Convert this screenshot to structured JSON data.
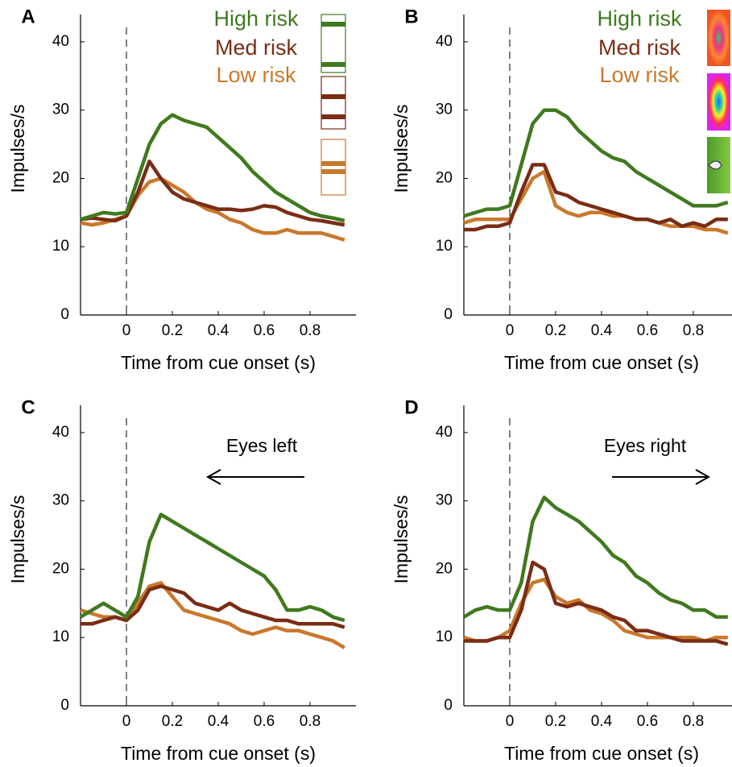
{
  "chart_data": [
    {
      "type": "line",
      "panel_label": "A",
      "x_label": "Time from cue onset (s)",
      "y_label": "Impulses/s",
      "x": [
        -0.2,
        -0.15,
        -0.1,
        -0.05,
        0,
        0.05,
        0.1,
        0.15,
        0.2,
        0.25,
        0.3,
        0.35,
        0.4,
        0.45,
        0.5,
        0.55,
        0.6,
        0.65,
        0.7,
        0.75,
        0.8,
        0.85,
        0.9,
        0.95
      ],
      "xlim": [
        -0.2,
        1
      ],
      "ylim": [
        0,
        44
      ],
      "xticks": [
        0,
        0.2,
        0.4,
        0.6,
        0.8
      ],
      "yticks": [
        0,
        10,
        20,
        30,
        40
      ],
      "reference_line_x": 0,
      "series": [
        {
          "name": "High risk",
          "color": "#3f7a1e",
          "values": [
            14,
            14.5,
            15,
            14.8,
            15,
            20,
            25,
            28,
            29.3,
            28.5,
            28,
            27.5,
            26,
            24.5,
            23,
            21,
            19.5,
            18,
            17,
            16,
            15,
            14.5,
            14.2,
            13.8
          ]
        },
        {
          "name": "Med risk",
          "color": "#7a2d14",
          "values": [
            14,
            14.2,
            14,
            13.8,
            14.5,
            18,
            22.5,
            20,
            18,
            17,
            16.5,
            16,
            15.5,
            15.5,
            15.3,
            15.5,
            16,
            15.8,
            15,
            14.5,
            14,
            13.8,
            13.5,
            13.2
          ]
        },
        {
          "name": "Low risk",
          "color": "#c9782c",
          "values": [
            13.5,
            13.2,
            13.5,
            14,
            14.5,
            17.5,
            19.5,
            20,
            19,
            18,
            16.5,
            15.5,
            15,
            14,
            13.5,
            12.5,
            12,
            12,
            12.5,
            12,
            12,
            12,
            11.5,
            11
          ]
        }
      ]
    },
    {
      "type": "line",
      "panel_label": "B",
      "x_label": "Time from cue onset (s)",
      "y_label": "Impulses/s",
      "x": [
        -0.2,
        -0.15,
        -0.1,
        -0.05,
        0,
        0.05,
        0.1,
        0.15,
        0.2,
        0.25,
        0.3,
        0.35,
        0.4,
        0.45,
        0.5,
        0.55,
        0.6,
        0.65,
        0.7,
        0.75,
        0.8,
        0.85,
        0.9,
        0.95
      ],
      "xlim": [
        -0.2,
        1
      ],
      "ylim": [
        0,
        44
      ],
      "xticks": [
        0,
        0.2,
        0.4,
        0.6,
        0.8
      ],
      "yticks": [
        0,
        10,
        20,
        30,
        40
      ],
      "reference_line_x": 0,
      "series": [
        {
          "name": "High risk",
          "color": "#3f7a1e",
          "values": [
            14.5,
            15,
            15.5,
            15.5,
            16,
            22,
            28,
            30,
            30,
            29,
            27,
            25.5,
            24,
            23,
            22.5,
            21,
            20,
            19,
            18,
            17,
            16,
            16,
            16,
            16.5
          ]
        },
        {
          "name": "Med risk",
          "color": "#7a2d14",
          "values": [
            12.5,
            12.5,
            13,
            13,
            13.5,
            18,
            22,
            22,
            18,
            17.5,
            16.5,
            16,
            15.5,
            15,
            14.5,
            14,
            14,
            13.5,
            14,
            13,
            13.5,
            13,
            14,
            14
          ]
        },
        {
          "name": "Low risk",
          "color": "#c9782c",
          "values": [
            13.5,
            14,
            14,
            14,
            14,
            17,
            20,
            21,
            16,
            15,
            14.5,
            15,
            15,
            14.5,
            14.5,
            14,
            14,
            13.5,
            13,
            13,
            13,
            12.5,
            12.5,
            12
          ]
        }
      ]
    },
    {
      "type": "line",
      "panel_label": "C",
      "x_label": "Time from cue onset (s)",
      "y_label": "Impulses/s",
      "annotation": "Eyes left",
      "x": [
        -0.2,
        -0.15,
        -0.1,
        -0.05,
        0,
        0.05,
        0.1,
        0.15,
        0.2,
        0.25,
        0.3,
        0.35,
        0.4,
        0.45,
        0.5,
        0.55,
        0.6,
        0.65,
        0.7,
        0.75,
        0.8,
        0.85,
        0.9,
        0.95
      ],
      "xlim": [
        -0.2,
        1
      ],
      "ylim": [
        0,
        44
      ],
      "xticks": [
        0,
        0.2,
        0.4,
        0.6,
        0.8
      ],
      "yticks": [
        0,
        10,
        20,
        30,
        40
      ],
      "reference_line_x": 0,
      "series": [
        {
          "color": "#3f7a1e",
          "values": [
            13,
            14,
            15,
            14,
            13,
            16,
            24,
            28,
            27,
            26,
            25,
            24,
            23,
            22,
            21,
            20,
            19,
            17,
            14,
            14,
            14.5,
            14,
            13,
            12.5
          ]
        },
        {
          "color": "#7a2d14",
          "values": [
            12,
            12,
            12.5,
            13,
            12.5,
            14,
            17,
            17.5,
            17,
            16.5,
            15,
            14.5,
            14,
            15,
            14,
            13.5,
            13,
            12.5,
            12.5,
            12,
            12,
            12,
            12,
            11.5
          ]
        },
        {
          "color": "#c9782c",
          "values": [
            14,
            13.5,
            13,
            13,
            12.5,
            15,
            17.5,
            18,
            16,
            14,
            13.5,
            13,
            12.5,
            12,
            11,
            10.5,
            11,
            11.5,
            11,
            11,
            10.5,
            10,
            9.5,
            8.5
          ]
        }
      ]
    },
    {
      "type": "line",
      "panel_label": "D",
      "x_label": "Time from cue onset (s)",
      "y_label": "Impulses/s",
      "annotation": "Eyes right",
      "x": [
        -0.2,
        -0.15,
        -0.1,
        -0.05,
        0,
        0.05,
        0.1,
        0.15,
        0.2,
        0.25,
        0.3,
        0.35,
        0.4,
        0.45,
        0.5,
        0.55,
        0.6,
        0.65,
        0.7,
        0.75,
        0.8,
        0.85,
        0.9,
        0.95
      ],
      "xlim": [
        -0.2,
        1
      ],
      "ylim": [
        0,
        44
      ],
      "xticks": [
        0,
        0.2,
        0.4,
        0.6,
        0.8
      ],
      "yticks": [
        0,
        10,
        20,
        30,
        40
      ],
      "reference_line_x": 0,
      "series": [
        {
          "color": "#3f7a1e",
          "values": [
            13,
            14,
            14.5,
            14,
            14,
            18,
            27,
            30.5,
            29,
            28,
            27,
            25.5,
            24,
            22,
            21,
            19,
            18,
            16.5,
            15.5,
            15,
            14,
            14,
            13,
            13
          ]
        },
        {
          "color": "#7a2d14",
          "values": [
            9.5,
            9.5,
            9.5,
            10,
            10,
            14,
            21,
            20,
            15,
            14.5,
            15,
            14.5,
            14,
            13,
            12.5,
            11,
            11,
            10.5,
            10,
            9.5,
            9.5,
            9.5,
            9.5,
            9
          ]
        },
        {
          "color": "#c9782c",
          "values": [
            10,
            9.5,
            9.5,
            10,
            11,
            15,
            18,
            18.5,
            16,
            15,
            15.5,
            14,
            13.5,
            12.5,
            11,
            10.5,
            10,
            10,
            10,
            10,
            10,
            9.5,
            10,
            10
          ]
        }
      ]
    }
  ]
}
